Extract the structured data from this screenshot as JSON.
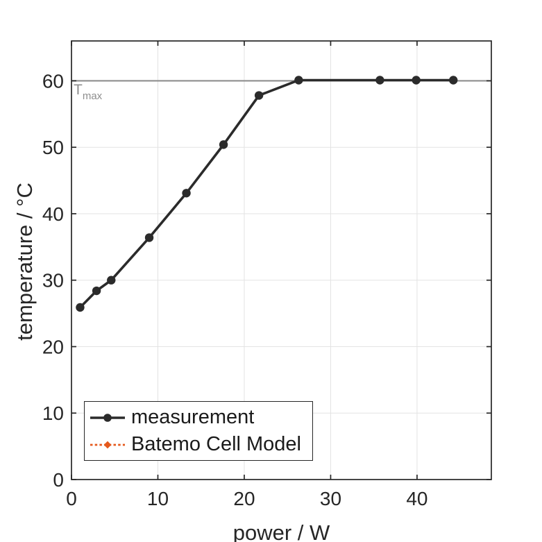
{
  "figure": {
    "background": "#ffffff"
  },
  "chart_data": {
    "type": "line",
    "title": "",
    "xlabel": "power / W",
    "ylabel": "temperature / °C",
    "xlim": [
      0,
      48.6
    ],
    "ylim": [
      0,
      66
    ],
    "xticks": [
      0,
      10,
      20,
      30,
      40
    ],
    "yticks": [
      0,
      10,
      20,
      30,
      40,
      50,
      60
    ],
    "grid": true,
    "grid_color": "#e3e3e3",
    "axes_color": "#262626",
    "legend_position": "inside-southwest",
    "series": [
      {
        "name": "measurement",
        "color": "#2b2b2b",
        "line_style": "solid",
        "line_width": 3.6,
        "marker": "circle",
        "marker_size": 6.2,
        "points": [
          [
            1.0,
            25.9
          ],
          [
            2.9,
            28.4
          ],
          [
            4.6,
            30.0
          ],
          [
            9.0,
            36.4
          ],
          [
            13.3,
            43.1
          ],
          [
            17.6,
            50.4
          ],
          [
            21.7,
            57.8
          ],
          [
            26.3,
            60.1
          ],
          [
            35.7,
            60.1
          ],
          [
            39.9,
            60.1
          ],
          [
            44.2,
            60.1
          ]
        ]
      },
      {
        "name": "Batemo Cell Model",
        "color": "#e5591c",
        "line_style": "dotted",
        "line_width": 2.6,
        "marker": "diamond",
        "marker_size": 4.2,
        "note": "coincident with measurement series, hidden beneath it",
        "points": [
          [
            1.0,
            25.9
          ],
          [
            2.9,
            28.4
          ],
          [
            4.6,
            30.0
          ],
          [
            9.0,
            36.4
          ],
          [
            13.3,
            43.1
          ],
          [
            17.6,
            50.4
          ],
          [
            21.7,
            57.8
          ],
          [
            26.3,
            60.1
          ],
          [
            35.7,
            60.1
          ],
          [
            39.9,
            60.1
          ],
          [
            44.2,
            60.1
          ]
        ]
      }
    ],
    "hline": {
      "y": 60,
      "color": "#8e8e8e",
      "label": "T",
      "label_sub": "max",
      "label_color": "#8e8e8e"
    }
  }
}
